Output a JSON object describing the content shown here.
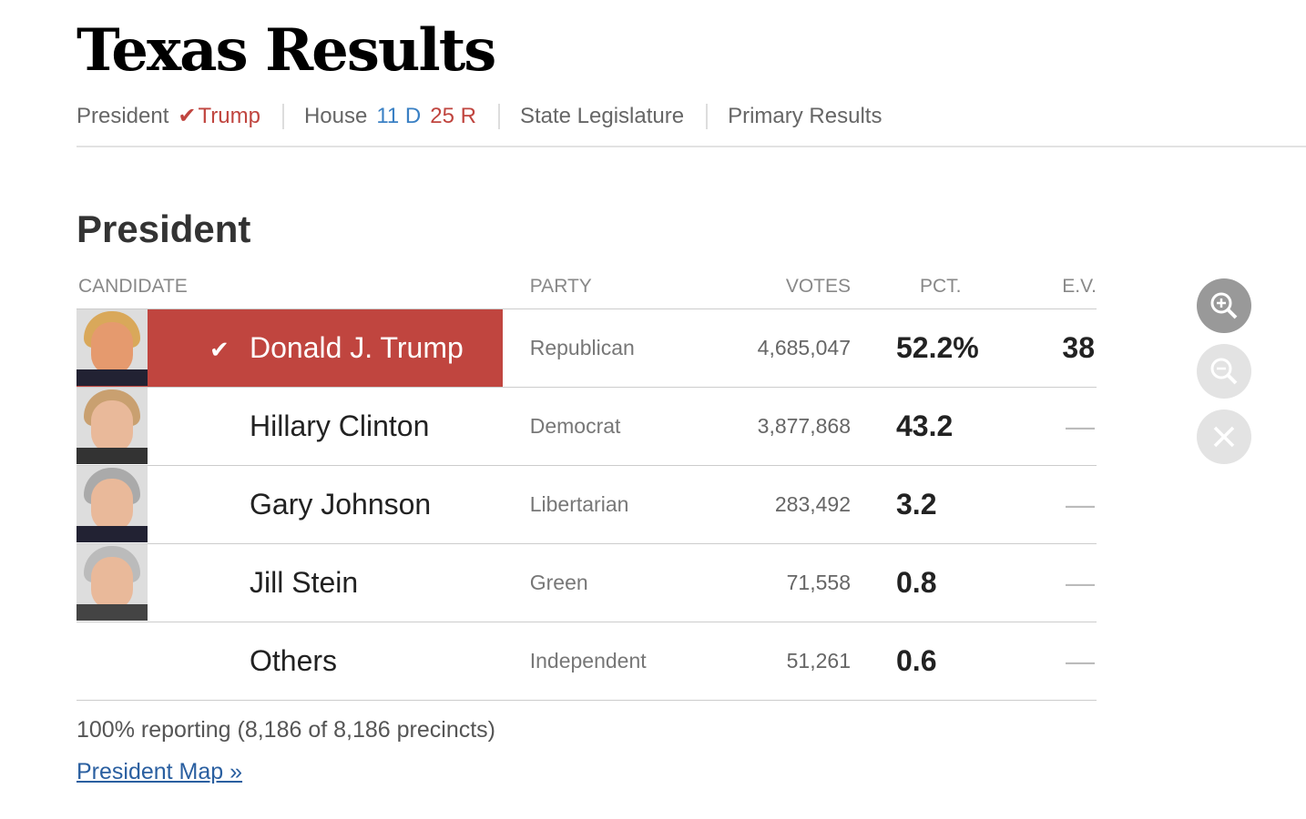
{
  "title": "Texas Results",
  "nav": {
    "president_label": "President",
    "president_winner": "Trump",
    "house_label": "House",
    "house_d": "11 D",
    "house_r": "25 R",
    "state_leg": "State Legislature",
    "primary": "Primary Results"
  },
  "section_title": "President",
  "columns": {
    "candidate": "CANDIDATE",
    "party": "PARTY",
    "votes": "VOTES",
    "pct": "PCT.",
    "ev": "E.V."
  },
  "rows": [
    {
      "name": "Donald J. Trump",
      "party": "Republican",
      "votes": "4,685,047",
      "pct": "52.2%",
      "ev": "38"
    },
    {
      "name": "Hillary Clinton",
      "party": "Democrat",
      "votes": "3,877,868",
      "pct": "43.2",
      "ev": "—"
    },
    {
      "name": "Gary Johnson",
      "party": "Libertarian",
      "votes": "283,492",
      "pct": "3.2",
      "ev": "—"
    },
    {
      "name": "Jill Stein",
      "party": "Green",
      "votes": "71,558",
      "pct": "0.8",
      "ev": "—"
    },
    {
      "name": "Others",
      "party": "Independent",
      "votes": "51,261",
      "pct": "0.6",
      "ev": "—"
    }
  ],
  "reporting": "100% reporting (8,186 of 8,186 precincts)",
  "map_link": "President Map »",
  "colors": {
    "rep": "#c0453f",
    "dem": "#3a80c4"
  }
}
